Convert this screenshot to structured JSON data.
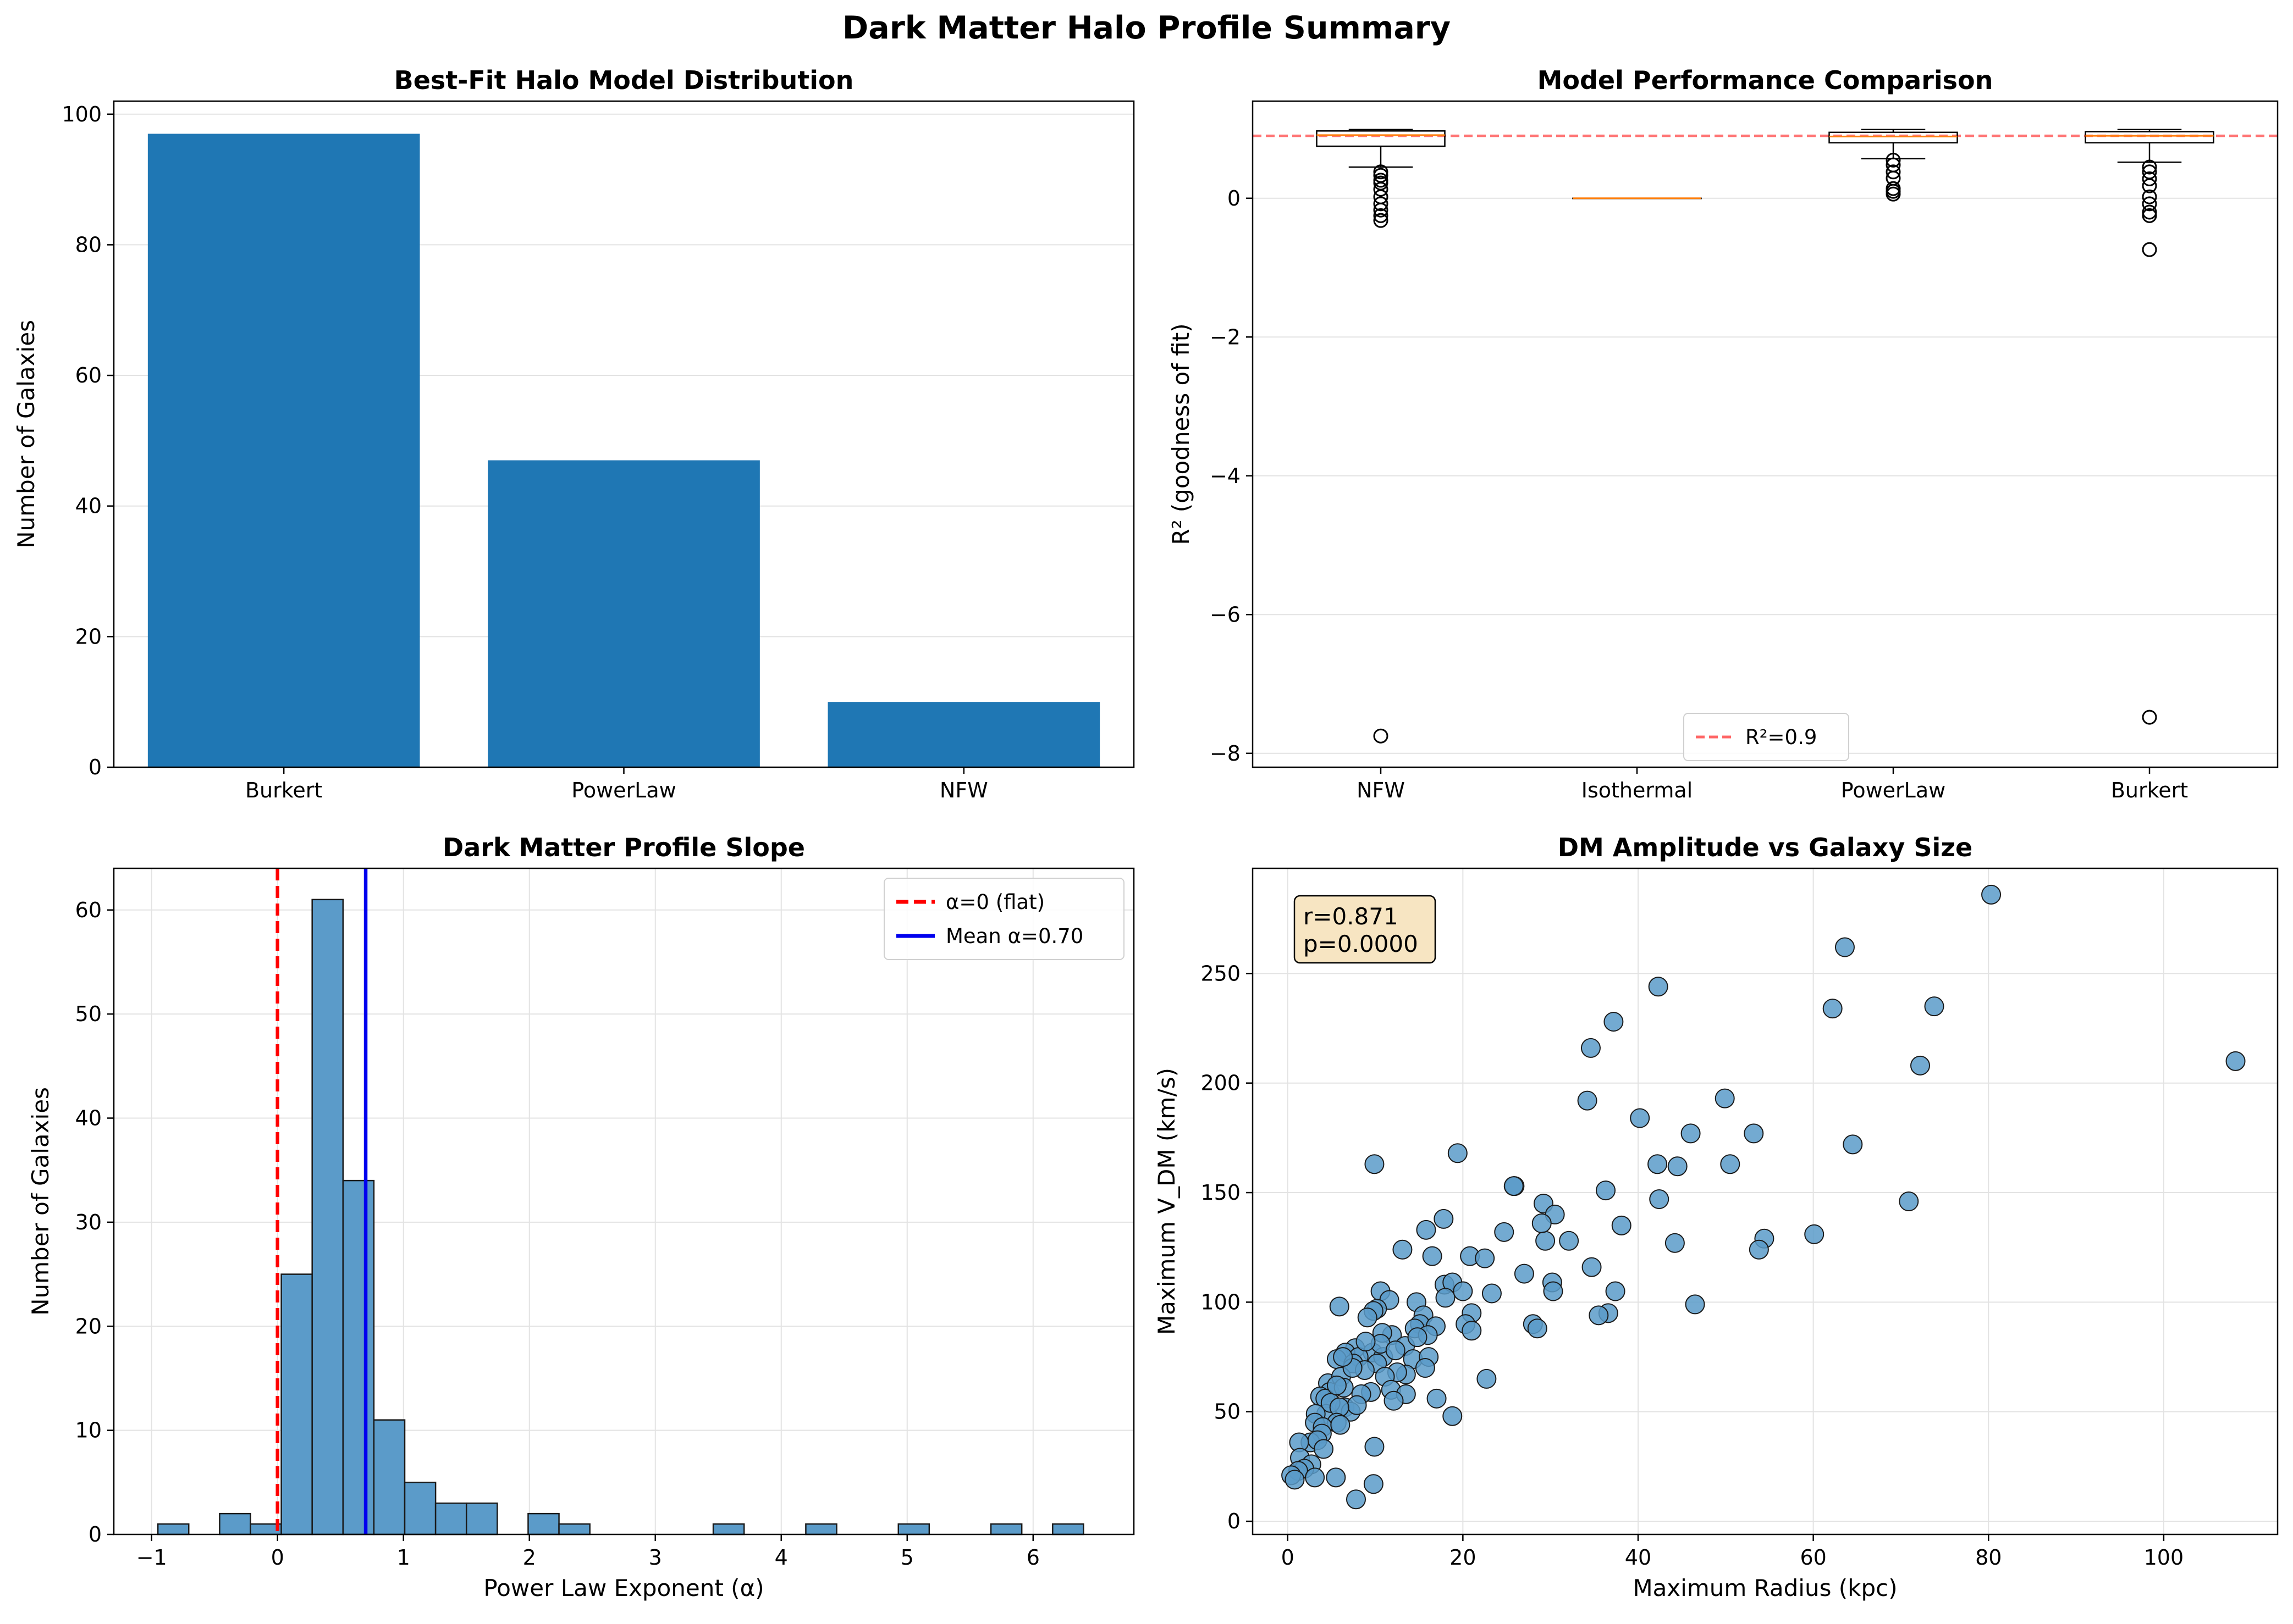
{
  "suptitle": "Dark Matter Halo Profile Summary",
  "chart_data": [
    {
      "type": "bar",
      "title": "Best-Fit Halo Model Distribution",
      "xlabel": "",
      "ylabel": "Number of Galaxies",
      "categories": [
        "Burkert",
        "PowerLaw",
        "NFW"
      ],
      "values": [
        97,
        47,
        10
      ],
      "ylim": [
        0,
        102
      ],
      "yticks": [
        0,
        20,
        40,
        60,
        80,
        100
      ],
      "grid": "y",
      "color": "#1f77b4"
    },
    {
      "type": "box",
      "title": "Model Performance Comparison",
      "xlabel": "",
      "ylabel": "R² (goodness of fit)",
      "categories": [
        "NFW",
        "Isothermal",
        "PowerLaw",
        "Burkert"
      ],
      "ylim": [
        -8.2,
        1.4
      ],
      "yticks": [
        0,
        -2,
        -4,
        -6,
        -8
      ],
      "grid": "y",
      "reference_line": {
        "value": 0.9,
        "label": "R²=0.9",
        "color": "#ff6666"
      },
      "legend_position": "lower center",
      "boxes": [
        {
          "name": "NFW",
          "q1": 0.75,
          "median": 0.91,
          "q3": 0.97,
          "whisker_low": 0.45,
          "whisker_high": 0.99,
          "outliers": [
            0.38,
            0.33,
            0.26,
            0.22,
            0.13,
            0.02,
            -0.08,
            -0.17,
            -0.25,
            -0.32,
            -7.75
          ]
        },
        {
          "name": "Isothermal",
          "q1": 0.0,
          "median": 0.0,
          "q3": 0.0,
          "whisker_low": 0.0,
          "whisker_high": 0.0,
          "outliers": []
        },
        {
          "name": "PowerLaw",
          "q1": 0.8,
          "median": 0.89,
          "q3": 0.95,
          "whisker_low": 0.57,
          "whisker_high": 0.99,
          "outliers": [
            0.55,
            0.48,
            0.38,
            0.29,
            0.14,
            0.1,
            0.06
          ]
        },
        {
          "name": "Burkert",
          "q1": 0.8,
          "median": 0.9,
          "q3": 0.96,
          "whisker_low": 0.52,
          "whisker_high": 0.99,
          "outliers": [
            0.45,
            0.38,
            0.28,
            0.18,
            0.02,
            -0.08,
            -0.2,
            -0.25,
            -0.74,
            -7.48
          ]
        }
      ]
    },
    {
      "type": "histogram",
      "title": "Dark Matter Profile Slope",
      "xlabel": "Power Law Exponent (α)",
      "ylabel": "Number of Galaxies",
      "xlim": [
        -1.3,
        6.8
      ],
      "ylim": [
        0,
        64
      ],
      "xticks": [
        -1,
        0,
        1,
        2,
        3,
        4,
        5,
        6
      ],
      "yticks": [
        0,
        10,
        20,
        30,
        40,
        50,
        60
      ],
      "grid": "both",
      "bin_start": -0.95,
      "bin_width": 0.245,
      "counts": [
        1,
        0,
        2,
        1,
        25,
        61,
        34,
        11,
        5,
        3,
        3,
        0,
        2,
        1,
        0,
        0,
        0,
        0,
        1,
        0,
        0,
        1,
        0,
        0,
        1,
        0,
        0,
        1,
        0,
        1
      ],
      "color": "#5b9bc9",
      "lines": [
        {
          "x": 0,
          "label": "α=0 (flat)",
          "color": "#ff0000",
          "style": "dashed"
        },
        {
          "x": 0.7,
          "label": "Mean α=0.70",
          "color": "#0000ee",
          "style": "solid"
        }
      ],
      "legend_position": "top-right"
    },
    {
      "type": "scatter",
      "title": "DM Amplitude vs Galaxy Size",
      "xlabel": "Maximum Radius (kpc)",
      "ylabel": "Maximum V_DM (km/s)",
      "xlim": [
        -4,
        113
      ],
      "ylim": [
        -6,
        298
      ],
      "xticks": [
        0,
        20,
        40,
        60,
        80,
        100
      ],
      "yticks": [
        0,
        50,
        100,
        150,
        200,
        250
      ],
      "grid": "both",
      "annotation": [
        "r=0.871",
        "p=0.0000"
      ],
      "color": "#5b9bc9",
      "points": [
        [
          80.3,
          286
        ],
        [
          63.6,
          262
        ],
        [
          42.3,
          244
        ],
        [
          62.2,
          234
        ],
        [
          73.8,
          235
        ],
        [
          37.2,
          228
        ],
        [
          34.6,
          216
        ],
        [
          108.2,
          210
        ],
        [
          72.2,
          208
        ],
        [
          34.2,
          192
        ],
        [
          49.9,
          193
        ],
        [
          40.2,
          184
        ],
        [
          46.0,
          177
        ],
        [
          53.2,
          177
        ],
        [
          64.5,
          172
        ],
        [
          19.4,
          168
        ],
        [
          9.9,
          163
        ],
        [
          42.2,
          163
        ],
        [
          44.5,
          162
        ],
        [
          50.5,
          163
        ],
        [
          25.9,
          153
        ],
        [
          25.8,
          153
        ],
        [
          36.3,
          151
        ],
        [
          42.4,
          147
        ],
        [
          70.9,
          146
        ],
        [
          29.2,
          145
        ],
        [
          30.5,
          140
        ],
        [
          17.8,
          138
        ],
        [
          38.1,
          135
        ],
        [
          15.8,
          133
        ],
        [
          24.7,
          132
        ],
        [
          60.1,
          131
        ],
        [
          29.4,
          128
        ],
        [
          32.1,
          128
        ],
        [
          44.2,
          127
        ],
        [
          54.4,
          129
        ],
        [
          53.8,
          124
        ],
        [
          13.1,
          124
        ],
        [
          20.8,
          121
        ],
        [
          16.5,
          121
        ],
        [
          22.5,
          120
        ],
        [
          34.7,
          116
        ],
        [
          29.0,
          136
        ],
        [
          27.0,
          113
        ],
        [
          17.9,
          108
        ],
        [
          18.8,
          109
        ],
        [
          30.2,
          109
        ],
        [
          30.3,
          105
        ],
        [
          37.4,
          105
        ],
        [
          10.6,
          105
        ],
        [
          20.0,
          105
        ],
        [
          23.3,
          104
        ],
        [
          18.0,
          102
        ],
        [
          11.6,
          101
        ],
        [
          46.5,
          99
        ],
        [
          5.9,
          98
        ],
        [
          14.7,
          100
        ],
        [
          10.2,
          97
        ],
        [
          9.8,
          96
        ],
        [
          36.6,
          95
        ],
        [
          35.5,
          94
        ],
        [
          15.5,
          94
        ],
        [
          9.1,
          93
        ],
        [
          21.0,
          95
        ],
        [
          28.0,
          90
        ],
        [
          15.1,
          90
        ],
        [
          16.9,
          89
        ],
        [
          20.3,
          90
        ],
        [
          28.5,
          88
        ],
        [
          14.5,
          88
        ],
        [
          21.0,
          87
        ],
        [
          11.9,
          85
        ],
        [
          16.0,
          85
        ],
        [
          10.8,
          86
        ],
        [
          7.7,
          79
        ],
        [
          9.7,
          77
        ],
        [
          13.4,
          80
        ],
        [
          6.6,
          77
        ],
        [
          8.1,
          75
        ],
        [
          5.6,
          74
        ],
        [
          10.9,
          75
        ],
        [
          14.3,
          74
        ],
        [
          10.2,
          72
        ],
        [
          7.5,
          72
        ],
        [
          13.5,
          67
        ],
        [
          8.8,
          69
        ],
        [
          4.6,
          63
        ],
        [
          6.1,
          66
        ],
        [
          12.5,
          68
        ],
        [
          7.4,
          70
        ],
        [
          11.1,
          66
        ],
        [
          22.7,
          65
        ],
        [
          4.8,
          59
        ],
        [
          3.7,
          57
        ],
        [
          6.4,
          61
        ],
        [
          9.5,
          59
        ],
        [
          11.8,
          60
        ],
        [
          13.5,
          58
        ],
        [
          12.1,
          55
        ],
        [
          8.4,
          58
        ],
        [
          4.3,
          56
        ],
        [
          6.5,
          52
        ],
        [
          7.2,
          50
        ],
        [
          4.4,
          49
        ],
        [
          4.9,
          54
        ],
        [
          3.2,
          49
        ],
        [
          7.9,
          53
        ],
        [
          5.9,
          52
        ],
        [
          5.6,
          45
        ],
        [
          3.1,
          45
        ],
        [
          4.0,
          43
        ],
        [
          18.8,
          48
        ],
        [
          6.0,
          44
        ],
        [
          3.9,
          40
        ],
        [
          2.6,
          36
        ],
        [
          1.3,
          36
        ],
        [
          3.4,
          37
        ],
        [
          9.9,
          34
        ],
        [
          4.1,
          33
        ],
        [
          1.4,
          29
        ],
        [
          2.7,
          26
        ],
        [
          1.9,
          24
        ],
        [
          1.2,
          23
        ],
        [
          0.4,
          21
        ],
        [
          0.8,
          19
        ],
        [
          3.1,
          20
        ],
        [
          5.5,
          20
        ],
        [
          9.8,
          17
        ],
        [
          7.8,
          10
        ],
        [
          6.3,
          75
        ],
        [
          5.6,
          62
        ],
        [
          10.6,
          81
        ],
        [
          8.9,
          82
        ],
        [
          16.1,
          75
        ],
        [
          15.7,
          70
        ],
        [
          12.3,
          78
        ],
        [
          17.0,
          56
        ],
        [
          14.8,
          84
        ]
      ]
    }
  ]
}
